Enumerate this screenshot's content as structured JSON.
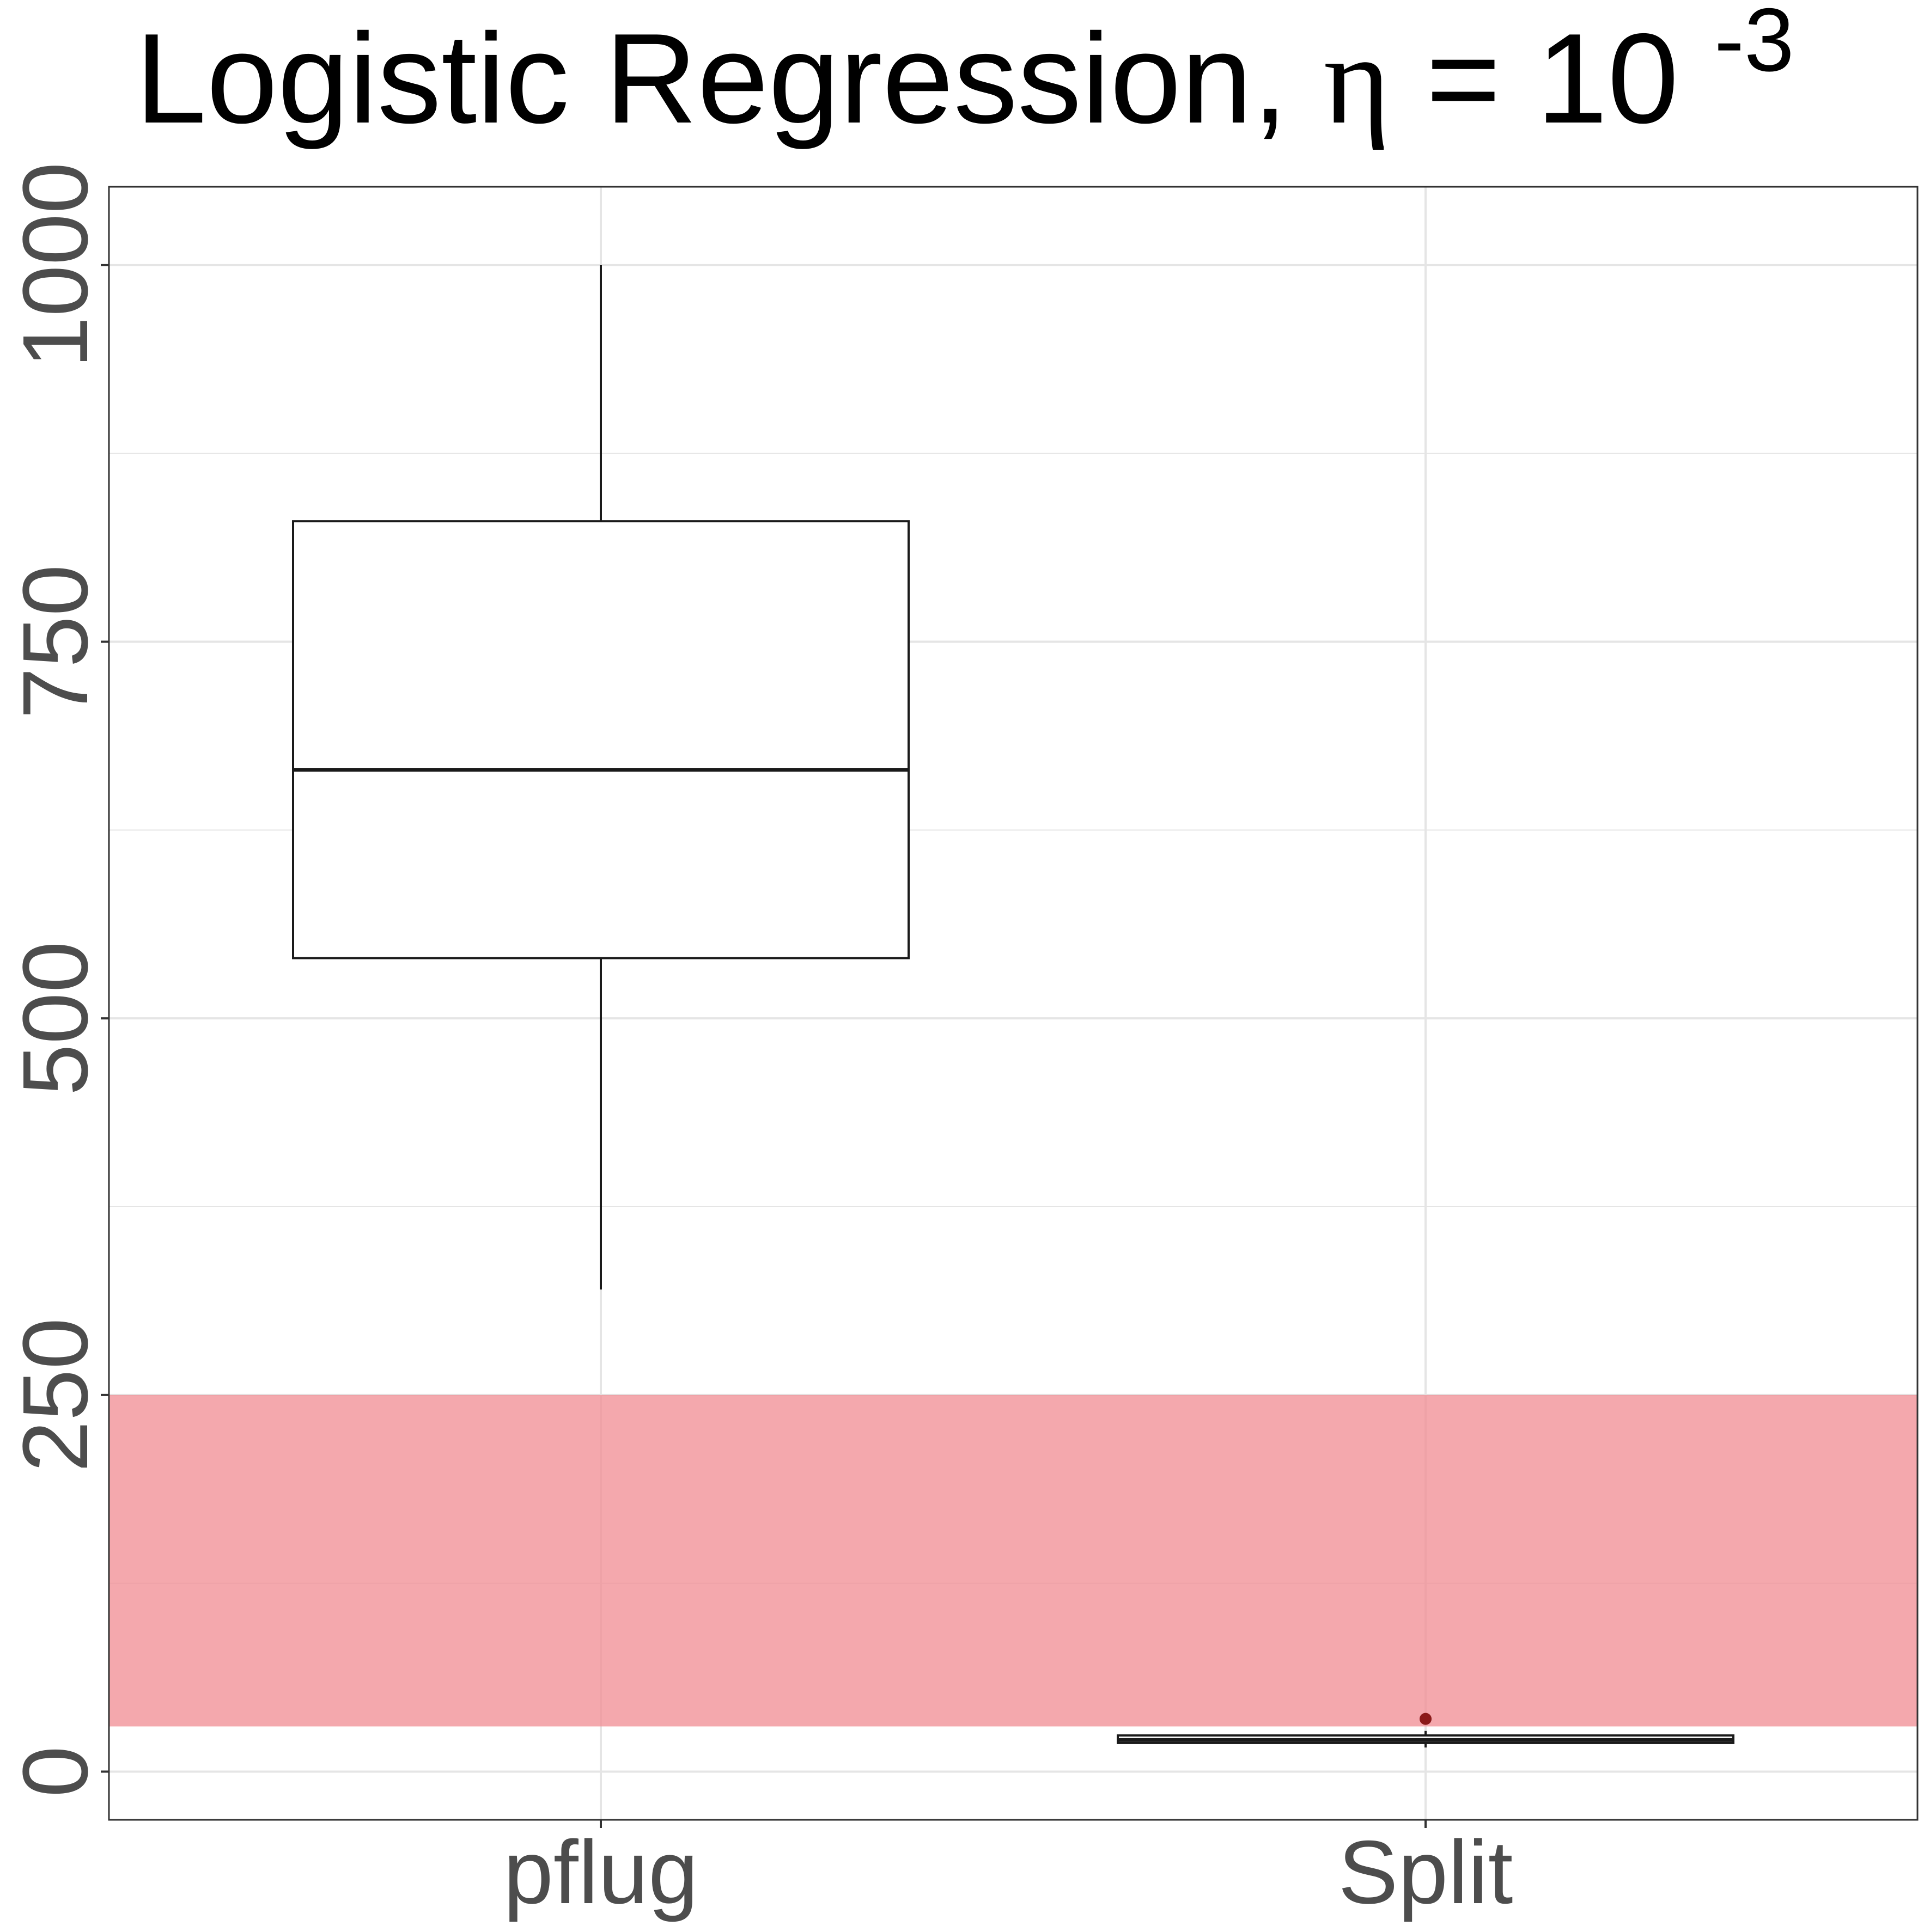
{
  "chart_data": {
    "type": "box",
    "title": {
      "main": "Logistic Regression, ",
      "symbol": "η",
      "eq": " = 10",
      "superscript": "-3"
    },
    "xlabel": "",
    "ylabel": "",
    "ylim": [
      -32,
      1052
    ],
    "yticks": [
      0,
      250,
      500,
      750,
      1000
    ],
    "ytick_labels": [
      "0",
      "250",
      "500",
      "750",
      "1000"
    ],
    "yminor": [
      125,
      375,
      625,
      875
    ],
    "categories": [
      "pflug",
      "Split"
    ],
    "boxes": [
      {
        "category": "pflug",
        "whisker_low": 320,
        "q1": 540,
        "median": 665,
        "q3": 830,
        "whisker_high": 1000,
        "outliers": []
      },
      {
        "category": "Split",
        "whisker_low": 16,
        "q1": 19,
        "median": 21,
        "q3": 24,
        "whisker_high": 27,
        "outliers": [
          35
        ]
      }
    ],
    "band": {
      "from": 30,
      "to": 250,
      "color": "#f08b92",
      "opacity": 0.75
    },
    "colors": {
      "box_line": "#1a1a1a",
      "grid": "#e5e5e5",
      "outlier": "#8b1a1a",
      "tick_text": "#4d4d4d"
    },
    "grid": true,
    "legend": "none"
  }
}
